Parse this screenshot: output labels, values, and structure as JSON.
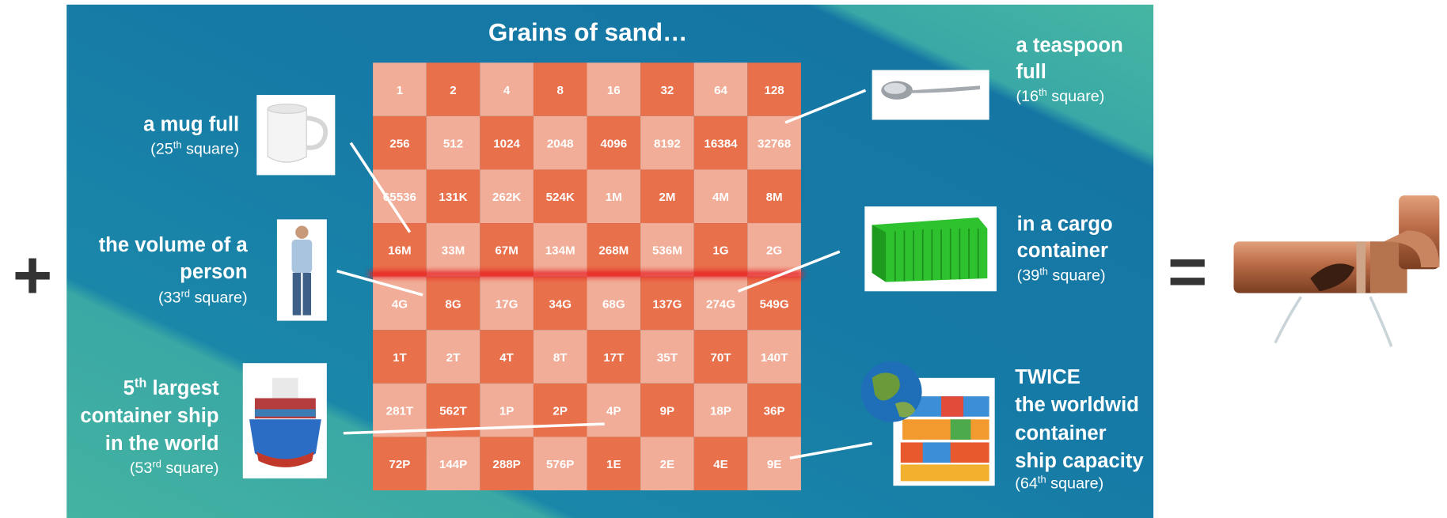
{
  "symbols": {
    "plus": "+",
    "equals": "="
  },
  "title": "Grains of sand…",
  "board": {
    "rows": [
      [
        "1",
        "2",
        "4",
        "8",
        "16",
        "32",
        "64",
        "128"
      ],
      [
        "256",
        "512",
        "1024",
        "2048",
        "4096",
        "8192",
        "16384",
        "32768"
      ],
      [
        "65536",
        "131K",
        "262K",
        "524K",
        "1M",
        "2M",
        "4M",
        "8M"
      ],
      [
        "16M",
        "33M",
        "67M",
        "134M",
        "268M",
        "536M",
        "1G",
        "2G"
      ],
      [
        "4G",
        "8G",
        "17G",
        "34G",
        "68G",
        "137G",
        "274G",
        "549G"
      ],
      [
        "1T",
        "2T",
        "4T",
        "8T",
        "17T",
        "35T",
        "70T",
        "140T"
      ],
      [
        "281T",
        "562T",
        "1P",
        "2P",
        "4P",
        "9P",
        "18P",
        "36P"
      ],
      [
        "72P",
        "144P",
        "288P",
        "576P",
        "1E",
        "2E",
        "4E",
        "9E"
      ]
    ]
  },
  "annotations": [
    {
      "lines": [
        {
          "text": "a teaspoon"
        },
        {
          "text": "full"
        }
      ],
      "note": {
        "prefix": "(16",
        "sup": "th",
        "suffix": " square)"
      }
    },
    {
      "lines": [
        {
          "text": "a mug full"
        }
      ],
      "note": {
        "prefix": "(25",
        "sup": "th",
        "suffix": " square)"
      }
    },
    {
      "lines": [
        {
          "text": "the volume of a"
        },
        {
          "text": "person"
        }
      ],
      "note": {
        "prefix": "(33",
        "sup": "rd",
        "suffix": " square)"
      }
    },
    {
      "lines": [
        {
          "text": "in a cargo"
        },
        {
          "text": "container"
        }
      ],
      "note": {
        "prefix": "(39",
        "sup": "th",
        "suffix": " square)"
      }
    },
    {
      "lines": [
        {
          "text": "5",
          "sup": "th",
          "after": " largest"
        },
        {
          "text": "container ship"
        },
        {
          "text": "in the world"
        }
      ],
      "note": {
        "prefix": "(53",
        "sup": "rd",
        "suffix": " square)"
      }
    },
    {
      "lines": [
        {
          "text": "TWICE"
        },
        {
          "text": "the worldwid"
        },
        {
          "text": "container"
        },
        {
          "text": "ship capacity"
        }
      ],
      "note": {
        "prefix": "(64",
        "sup": "th",
        "suffix": " square)"
      }
    }
  ]
}
